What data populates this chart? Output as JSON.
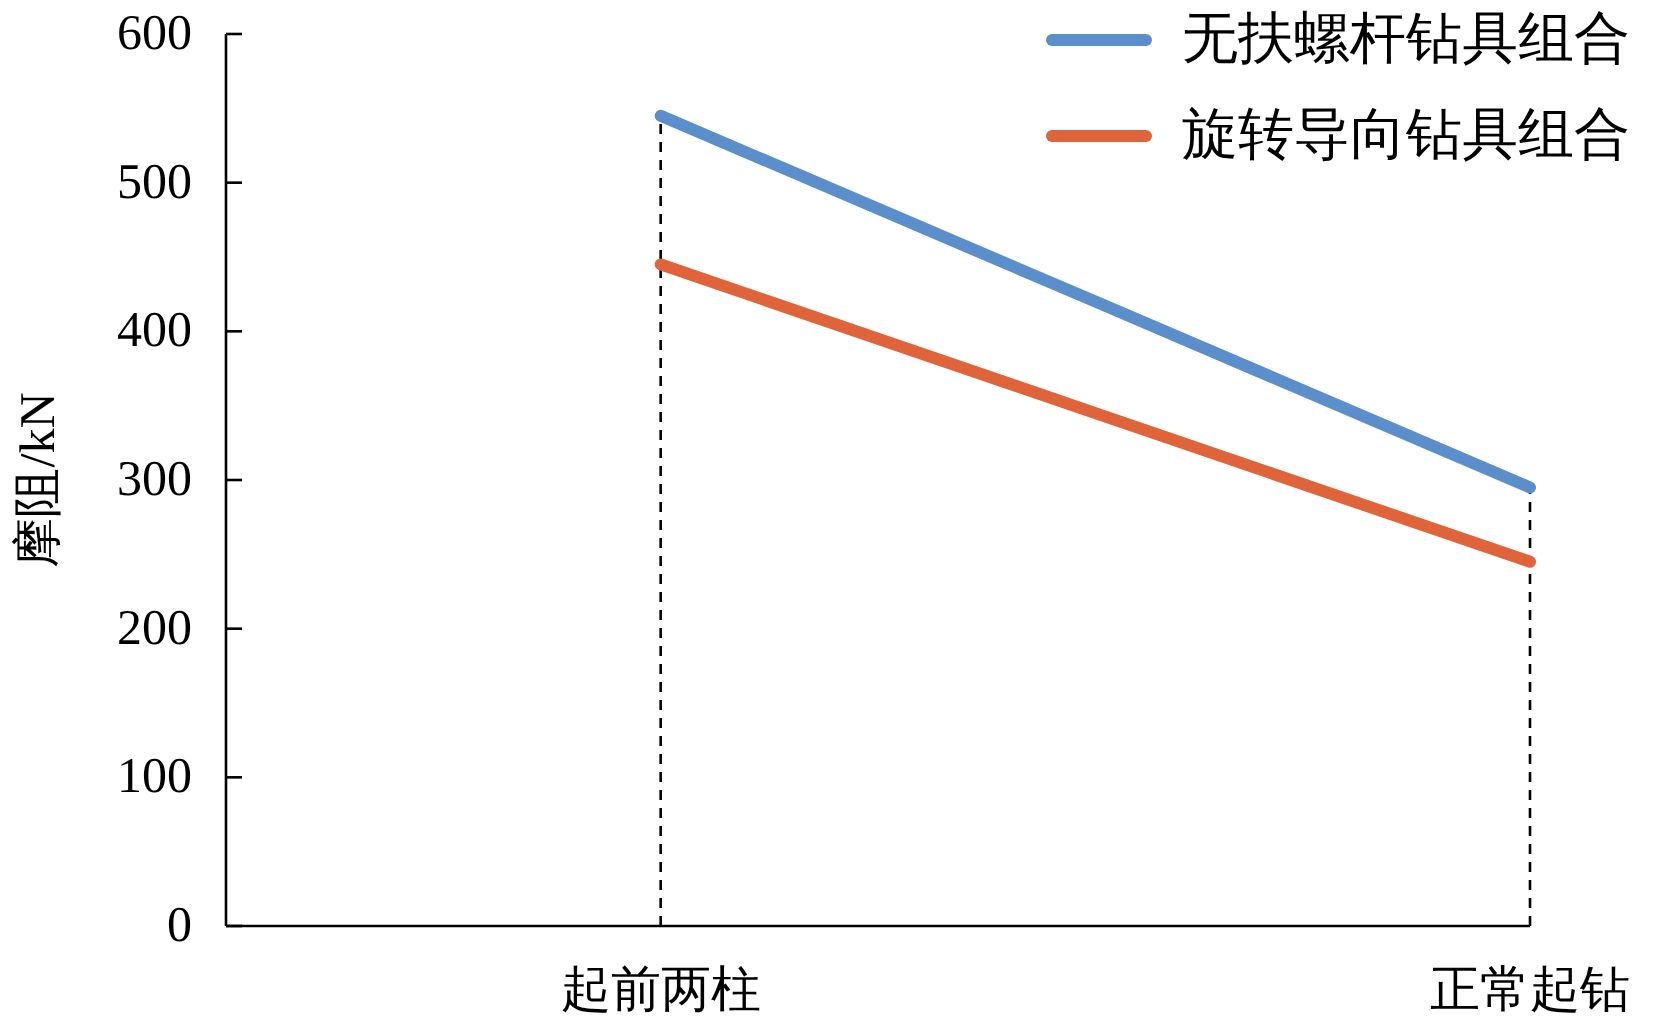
{
  "chart_data": {
    "type": "line",
    "ylabel": "摩阻/kN",
    "categories": [
      null,
      "起前两柱",
      null,
      "正常起钻"
    ],
    "series": [
      {
        "name": "无扶螺杆钻具组合",
        "color": "#5b8fcb",
        "values": [
          null,
          545,
          420,
          295
        ]
      },
      {
        "name": "旋转导向钻具组合",
        "color": "#e0643a",
        "values": [
          null,
          445,
          345,
          245
        ]
      }
    ],
    "ylim": [
      0,
      600
    ],
    "yticks": [
      0,
      100,
      200,
      300,
      400,
      500,
      600
    ],
    "grid": false,
    "legend": "top right",
    "marker": "none",
    "line_style": "solid",
    "ref_lines": [
      {
        "axis": "x",
        "value": "起前两柱",
        "line_style": "dashed",
        "color": "#000000"
      },
      {
        "axis": "x",
        "value": "正常起钻",
        "line_style": "dashed",
        "color": "#000000"
      }
    ]
  }
}
